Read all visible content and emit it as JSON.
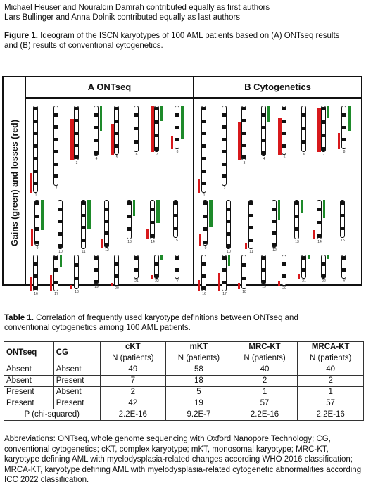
{
  "header": {
    "line1": "Michael Heuser and Nouraldin Damrah contributed equally as first authors",
    "line2": "Lars Bullinger and Anna Dolnik contributed equally as last authors"
  },
  "figure_caption": {
    "label": "Figure 1.",
    "text": " Ideogram of the ISCN karyotypes of 100 AML patients based on (A) ONTseq results",
    "text2": "and (B) results of conventional cytogenetics."
  },
  "figure": {
    "y_label": "Gains (green) and losses (red)",
    "panel_a_title": "A   ONTseq",
    "panel_b_title": "B   Cytogenetics",
    "colors": {
      "gain": "#1e8a2a",
      "loss": "#d7191c"
    },
    "chromosomes": [
      "1",
      "2",
      "3",
      "4",
      "5",
      "6",
      "7",
      "8",
      "9",
      "10",
      "11",
      "12",
      "13",
      "14",
      "15",
      "16",
      "17",
      "18",
      "19",
      "20",
      "21",
      "22",
      "Y"
    ]
  },
  "table_caption": {
    "label": "Table 1.",
    "text": " Correlation of frequently used karyotype definitions between ONTseq and",
    "text2": "conventional cytogenetics among 100 AML patients."
  },
  "table": {
    "headers": [
      "ONTseq",
      "CG",
      "cKT",
      "mKT",
      "MRC-KT",
      "MRCA-KT"
    ],
    "subheader": "N (patients)",
    "rows": [
      [
        "Absent",
        "Absent",
        "49",
        "58",
        "40",
        "40"
      ],
      [
        "Absent",
        "Present",
        "7",
        "18",
        "2",
        "2"
      ],
      [
        "Present",
        "Absent",
        "2",
        "5",
        "1",
        "1"
      ],
      [
        "Present",
        "Present",
        "42",
        "19",
        "57",
        "57"
      ]
    ],
    "p_label": "P (chi-squared)",
    "p_values": [
      "2.2E-16",
      "9.2E-7",
      "2.2E-16",
      "2.2E-16"
    ]
  },
  "abbreviations": "Abbreviations: ONTseq, whole genome sequencing with Oxford Nanopore Technology; CG, conventional cytogenetics; cKT, complex karyotype; mKT, monosomal karyotype; MRC-KT, karyotype defining AML with myelodysplasia-related changes according WHO 2016 classification; MRCA-KT, karyotype defining AML with myelodysplasia-related cytogenetic abnormalities according ICC 2022 classification."
}
